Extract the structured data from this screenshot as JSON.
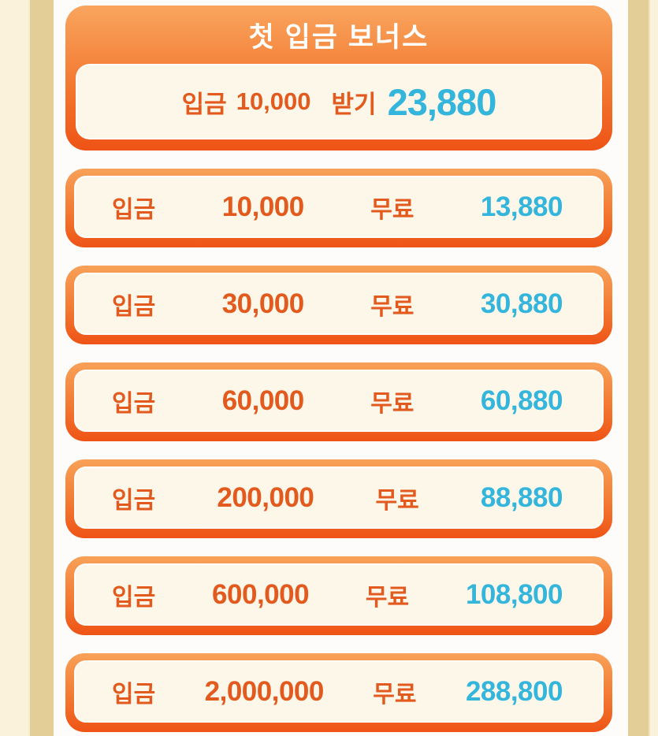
{
  "colors": {
    "side_cream": "#FBF2DB",
    "side_tan": "#E3CE97",
    "background": "#FDFCFA",
    "card_border_top": "#F8A158",
    "card_border_bottom": "#EE5316",
    "panel_cream": "#FDF7E9",
    "text_orange": "#E25A1E",
    "text_cyan": "#34B6DC",
    "title_white": "#FFFFFF"
  },
  "header_card": {
    "title": "첫 입금 보너스",
    "deposit_label": "입금",
    "deposit_amount": "10,000",
    "claim_label": "받기",
    "bonus_amount": "23,880"
  },
  "rows": [
    {
      "deposit_label": "입금",
      "deposit_amount": "10,000",
      "free_label": "무료",
      "bonus_amount": "13,880"
    },
    {
      "deposit_label": "입금",
      "deposit_amount": "30,000",
      "free_label": "무료",
      "bonus_amount": "30,880"
    },
    {
      "deposit_label": "입금",
      "deposit_amount": "60,000",
      "free_label": "무료",
      "bonus_amount": "60,880"
    },
    {
      "deposit_label": "입금",
      "deposit_amount": "200,000",
      "free_label": "무료",
      "bonus_amount": "88,880"
    },
    {
      "deposit_label": "입금",
      "deposit_amount": "600,000",
      "free_label": "무료",
      "bonus_amount": "108,800"
    },
    {
      "deposit_label": "입금",
      "deposit_amount": "2,000,000",
      "free_label": "무료",
      "bonus_amount": "288,800"
    }
  ]
}
